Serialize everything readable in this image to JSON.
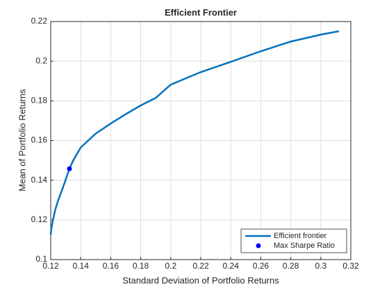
{
  "chart_data": {
    "type": "line",
    "title": "Efficient Frontier",
    "x_label": "Standard Deviation of Portfolio Returns",
    "y_label": "Mean of Portfolio Returns",
    "xlim": [
      0.12,
      0.32
    ],
    "ylim": [
      0.1,
      0.22
    ],
    "xticks": [
      0.12,
      0.14,
      0.16,
      0.18,
      0.2,
      0.22,
      0.24,
      0.26,
      0.28,
      0.3,
      0.32
    ],
    "yticks": [
      0.1,
      0.12,
      0.14,
      0.16,
      0.18,
      0.2,
      0.22
    ],
    "grid": true,
    "legend": "southeast",
    "series": [
      {
        "name": "Efficient frontier",
        "type": "line",
        "color": "#0072bd",
        "x": [
          0.12,
          0.1205,
          0.1215,
          0.123,
          0.125,
          0.128,
          0.1325,
          0.135,
          0.14,
          0.15,
          0.16,
          0.17,
          0.18,
          0.19,
          0.2,
          0.22,
          0.24,
          0.26,
          0.28,
          0.3,
          0.312
        ],
        "values": [
          0.1125,
          0.116,
          0.12,
          0.125,
          0.13,
          0.136,
          0.1458,
          0.15,
          0.1565,
          0.1635,
          0.1686,
          0.1733,
          0.1777,
          0.1815,
          0.1882,
          0.1945,
          0.1997,
          0.205,
          0.2099,
          0.2134,
          0.2151
        ]
      },
      {
        "name": "Max Sharpe Ratio",
        "type": "scatter",
        "color": "#0000ff",
        "x": [
          0.1325
        ],
        "values": [
          0.1458
        ]
      }
    ]
  }
}
